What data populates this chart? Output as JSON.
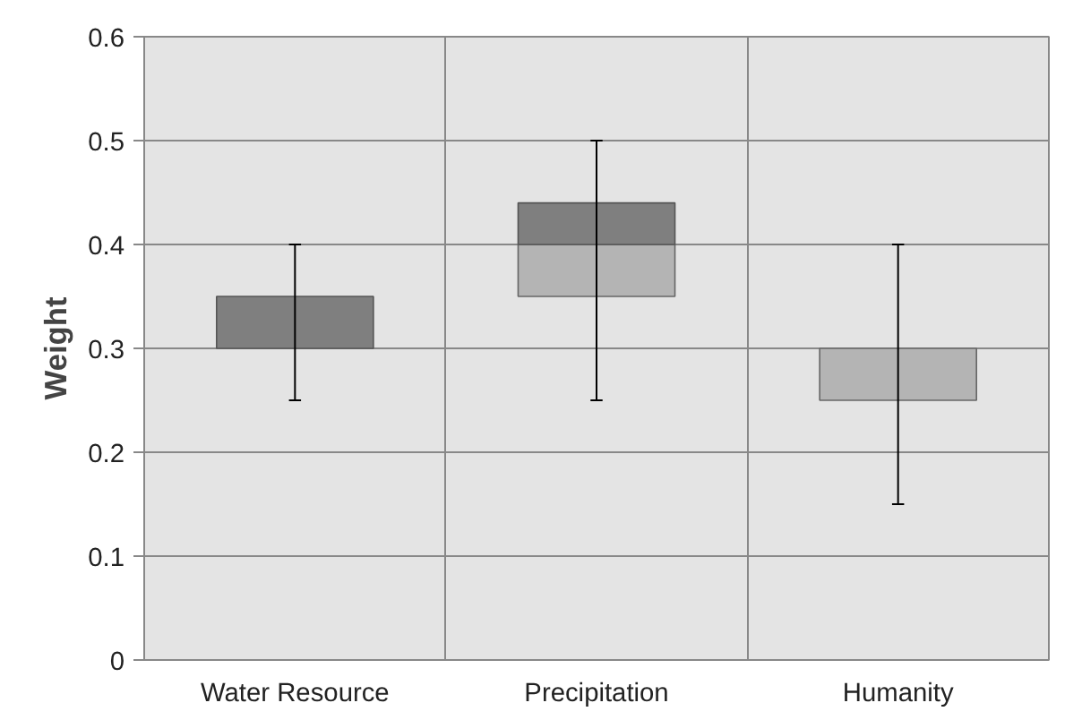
{
  "chart_data": {
    "type": "box",
    "ylabel": "Weight",
    "categories": [
      "Water Resource",
      "Precipitation",
      "Humanity"
    ],
    "boxes": [
      {
        "low": 0.25,
        "q1": 0.3,
        "median": 0.3,
        "q3": 0.35,
        "high": 0.4
      },
      {
        "low": 0.25,
        "q1": 0.35,
        "median": 0.4,
        "q3": 0.44,
        "high": 0.5
      },
      {
        "low": 0.15,
        "q1": 0.25,
        "median": 0.3,
        "q3": 0.3,
        "high": 0.4
      }
    ],
    "colors": [
      [
        "#b4b4b4",
        "#7f7f7f"
      ],
      [
        "#b4b4b4",
        "#7f7f7f"
      ],
      [
        "#b4b4b4",
        "#7f7f7f"
      ]
    ],
    "ylim": [
      0,
      0.6
    ],
    "yticks": [
      0,
      0.1,
      0.2,
      0.3,
      0.4,
      0.5,
      0.6
    ],
    "grid": true
  }
}
